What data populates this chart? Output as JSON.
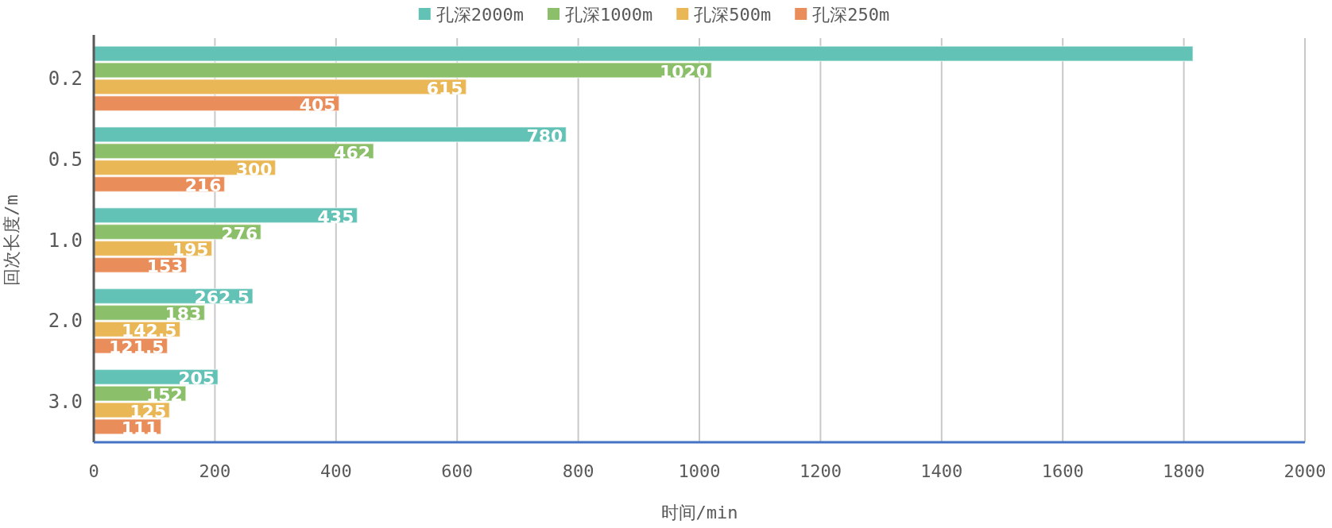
{
  "chart_data": {
    "type": "bar",
    "orientation": "horizontal",
    "xlabel": "时间/min",
    "ylabel": "回次长度/m",
    "categories": [
      "0.2",
      "0.5",
      "1.0",
      "2.0",
      "3.0"
    ],
    "series": [
      {
        "name": "孔深2000m",
        "color": "#62c2b6",
        "values": [
          1815,
          780,
          435,
          262.5,
          205
        ],
        "value_labels": [
          null,
          "780",
          "435",
          "262.5",
          "205"
        ]
      },
      {
        "name": "孔深1000m",
        "color": "#8cbf6a",
        "values": [
          1020,
          462,
          276,
          183,
          152
        ],
        "value_labels": [
          "1020",
          "462",
          "276",
          "183",
          "152"
        ]
      },
      {
        "name": "孔深500m",
        "color": "#e9b755",
        "values": [
          615,
          300,
          195,
          142.5,
          125
        ],
        "value_labels": [
          "615",
          "300",
          "195",
          "142.5",
          "125"
        ]
      },
      {
        "name": "孔深250m",
        "color": "#e98e5a",
        "values": [
          405,
          216,
          153,
          121.5,
          111
        ],
        "value_labels": [
          "405",
          "216",
          "153",
          "121.5",
          "111"
        ]
      }
    ],
    "xlim": [
      0,
      2000
    ],
    "xticks": [
      0,
      200,
      400,
      600,
      800,
      1000,
      1200,
      1400,
      1600,
      1800,
      2000
    ],
    "grid": "x",
    "legend": "top"
  }
}
